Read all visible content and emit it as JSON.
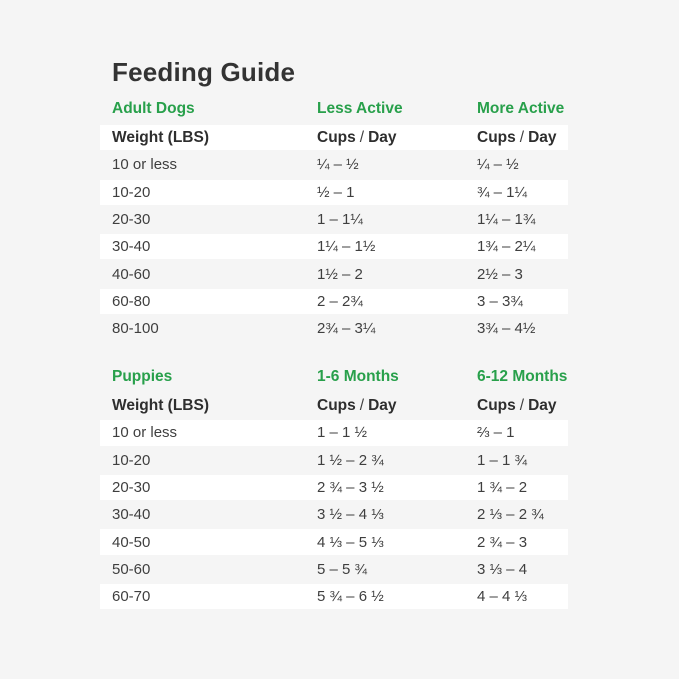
{
  "page": {
    "title": "Feeding Guide"
  },
  "theme": {
    "background": "#f5f5f5",
    "stripe": "#ffffff",
    "green": "#28a04b",
    "title_color": "#333333",
    "text_color": "#3f3f3f",
    "header_text": "#2e2e2e"
  },
  "tables": [
    {
      "section_title": "Adult Dogs",
      "col2_title": "Less Active",
      "col3_title": "More Active",
      "columns": {
        "weight": "Weight (LBS)",
        "cups": "Cups",
        "slash": "/",
        "day": "Day"
      },
      "rows": [
        {
          "weight": "10 or less",
          "col2": "¼ – ½",
          "col3": "¼ – ½"
        },
        {
          "weight": "10-20",
          "col2": "½ – 1",
          "col3": "¾ – 1¼"
        },
        {
          "weight": "20-30",
          "col2": "1 – 1¼",
          "col3": "1¼ – 1¾"
        },
        {
          "weight": "30-40",
          "col2": "1¼ – 1½",
          "col3": "1¾ – 2¼"
        },
        {
          "weight": "40-60",
          "col2": "1½ – 2",
          "col3": "2½ – 3"
        },
        {
          "weight": "60-80",
          "col2": "2 – 2¾",
          "col3": "3 – 3¾"
        },
        {
          "weight": "80-100",
          "col2": "2¾ – 3¼",
          "col3": "3¾ – 4½"
        }
      ]
    },
    {
      "section_title": "Puppies",
      "col2_title": "1-6 Months",
      "col3_title": "6-12 Months",
      "columns": {
        "weight": "Weight (LBS)",
        "cups": "Cups",
        "slash": "/",
        "day": "Day"
      },
      "rows": [
        {
          "weight": "10 or less",
          "col2": "1 – 1 ½",
          "col3": "⅔ – 1"
        },
        {
          "weight": "10-20",
          "col2": "1 ½ – 2 ¾",
          "col3": "1 – 1 ¾"
        },
        {
          "weight": "20-30",
          "col2": "2 ¾ – 3 ½",
          "col3": "1 ¾ – 2"
        },
        {
          "weight": "30-40",
          "col2": "3 ½ – 4 ⅓",
          "col3": "2 ⅓ – 2 ¾"
        },
        {
          "weight": "40-50",
          "col2": "4 ⅓ – 5 ⅓",
          "col3": "2 ¾ – 3"
        },
        {
          "weight": "50-60",
          "col2": "5 – 5 ¾",
          "col3": "3 ⅓ – 4"
        },
        {
          "weight": "60-70",
          "col2": "5 ¾ – 6 ½",
          "col3": "4 – 4 ⅓"
        }
      ]
    }
  ]
}
